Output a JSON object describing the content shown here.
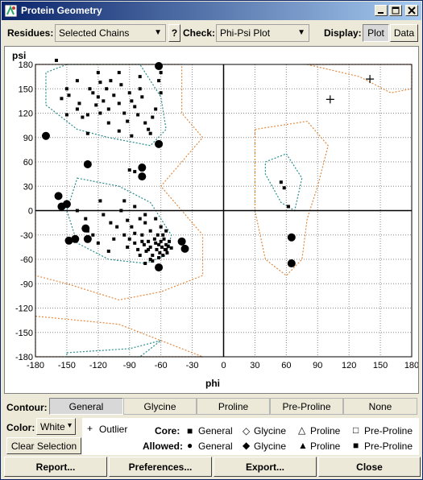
{
  "window": {
    "title": "Protein Geometry"
  },
  "toolbar": {
    "residues_label": "Residues:",
    "residues_value": "Selected Chains",
    "help_label": "?",
    "check_label": "Check:",
    "check_value": "Phi-Psi Plot",
    "display_label": "Display:",
    "plot_label": "Plot",
    "data_label": "Data"
  },
  "chart_data": {
    "type": "scatter",
    "xlabel": "phi",
    "ylabel": "psi",
    "xlim": [
      -180,
      180
    ],
    "ylim": [
      -180,
      180
    ],
    "xticks": [
      -180,
      -150,
      -120,
      -90,
      -60,
      -30,
      0,
      30,
      60,
      90,
      120,
      150,
      180
    ],
    "yticks": [
      180,
      150,
      120,
      90,
      60,
      30,
      0,
      -30,
      -60,
      -90,
      -120,
      -150,
      -180
    ],
    "grid": true,
    "series": [
      {
        "name": "General",
        "points": [
          [
            -155,
            138
          ],
          [
            -148,
            142
          ],
          [
            -150,
            150
          ],
          [
            -140,
            125
          ],
          [
            -138,
            132
          ],
          [
            -135,
            115
          ],
          [
            -130,
            118
          ],
          [
            -128,
            150
          ],
          [
            -125,
            145
          ],
          [
            -122,
            130
          ],
          [
            -120,
            140
          ],
          [
            -118,
            120
          ],
          [
            -115,
            135
          ],
          [
            -112,
            150
          ],
          [
            -110,
            125
          ],
          [
            -108,
            160
          ],
          [
            -105,
            142
          ],
          [
            -100,
            132
          ],
          [
            -98,
            155
          ],
          [
            -95,
            120
          ],
          [
            -92,
            110
          ],
          [
            -90,
            145
          ],
          [
            -88,
            135
          ],
          [
            -85,
            128
          ],
          [
            -82,
            118
          ],
          [
            -80,
            150
          ],
          [
            -78,
            140
          ],
          [
            -75,
            108
          ],
          [
            -72,
            100
          ],
          [
            -68,
            115
          ],
          [
            -65,
            125
          ],
          [
            -62,
            160
          ],
          [
            -60,
            145
          ],
          [
            -100,
            170
          ],
          [
            -120,
            170
          ],
          [
            -90,
            50
          ],
          [
            -85,
            48
          ],
          [
            -78,
            50
          ],
          [
            -155,
            5
          ],
          [
            -140,
            0
          ],
          [
            -132,
            -10
          ],
          [
            -130,
            -25
          ],
          [
            -125,
            -30
          ],
          [
            -118,
            12
          ],
          [
            -115,
            -5
          ],
          [
            -108,
            -15
          ],
          [
            -102,
            -20
          ],
          [
            -98,
            0
          ],
          [
            -95,
            -30
          ],
          [
            -92,
            -45
          ],
          [
            -90,
            -35
          ],
          [
            -88,
            -20
          ],
          [
            -85,
            -40
          ],
          [
            -82,
            -48
          ],
          [
            -80,
            -55
          ],
          [
            -78,
            -30
          ],
          [
            -76,
            -42
          ],
          [
            -75,
            -15
          ],
          [
            -74,
            -50
          ],
          [
            -72,
            -38
          ],
          [
            -70,
            -25
          ],
          [
            -70,
            -45
          ],
          [
            -68,
            -55
          ],
          [
            -66,
            -35
          ],
          [
            -65,
            -40
          ],
          [
            -64,
            -48
          ],
          [
            -63,
            -30
          ],
          [
            -62,
            -42
          ],
          [
            -61,
            -52
          ],
          [
            -60,
            -38
          ],
          [
            -59,
            -45
          ],
          [
            -58,
            -55
          ],
          [
            -57,
            -35
          ],
          [
            -56,
            -48
          ],
          [
            -55,
            -42
          ],
          [
            -54,
            -52
          ],
          [
            -53,
            -44
          ],
          [
            -52,
            -38
          ],
          [
            -50,
            -46
          ],
          [
            -60,
            -20
          ],
          [
            -65,
            -10
          ],
          [
            -85,
            5
          ],
          [
            -95,
            12
          ],
          [
            -55,
            -25
          ],
          [
            -70,
            -60
          ],
          [
            -80,
            -10
          ],
          [
            -105,
            -35
          ],
          [
            -60,
            170
          ],
          [
            -140,
            160
          ],
          [
            -130,
            95
          ],
          [
            -160,
            185
          ],
          [
            -118,
            158
          ],
          [
            -110,
            108
          ],
          [
            -150,
            118
          ],
          [
            -80,
            165
          ],
          [
            -70,
            95
          ],
          [
            -100,
            98
          ],
          [
            -88,
            92
          ],
          [
            -55,
            -48
          ],
          [
            -75,
            -65
          ],
          [
            -68,
            -62
          ],
          [
            -72,
            -48
          ],
          [
            -58,
            -30
          ],
          [
            -78,
            -38
          ],
          [
            -62,
            -58
          ],
          [
            -85,
            -28
          ],
          [
            -92,
            -12
          ],
          [
            -75,
            -5
          ],
          [
            -120,
            -40
          ],
          [
            -110,
            -50
          ],
          [
            55,
            35
          ],
          [
            58,
            28
          ],
          [
            62,
            5
          ]
        ]
      },
      {
        "name": "General Outlier",
        "points": [
          [
            -170,
            92
          ],
          [
            -130,
            57
          ],
          [
            -78,
            53
          ],
          [
            -78,
            42
          ],
          [
            -62,
            82
          ],
          [
            -62,
            178
          ],
          [
            -158,
            18
          ],
          [
            -155,
            5
          ],
          [
            -150,
            8
          ],
          [
            -148,
            -37
          ],
          [
            -142,
            -35
          ],
          [
            -132,
            -22
          ],
          [
            -130,
            -35
          ],
          [
            -62,
            -70
          ],
          [
            -40,
            -38
          ],
          [
            -37,
            -47
          ],
          [
            65,
            -33
          ],
          [
            65,
            -65
          ]
        ]
      },
      {
        "name": "Glycine",
        "points": [
          [
            102,
            137
          ],
          [
            140,
            162
          ]
        ]
      }
    ]
  },
  "contour": {
    "label": "Contour:",
    "options": [
      "General",
      "Glycine",
      "Proline",
      "Pre-Proline",
      "None"
    ],
    "selected": "General"
  },
  "color": {
    "label": "Color:",
    "value": "White"
  },
  "clear_selection_label": "Clear Selection",
  "legend": {
    "outlier": "Outlier",
    "core_label": "Core:",
    "allowed_label": "Allowed:",
    "general": "General",
    "glycine": "Glycine",
    "proline": "Proline",
    "pre_proline": "Pre-Proline"
  },
  "buttons": {
    "report": "Report...",
    "preferences": "Preferences...",
    "export": "Export...",
    "close": "Close"
  }
}
